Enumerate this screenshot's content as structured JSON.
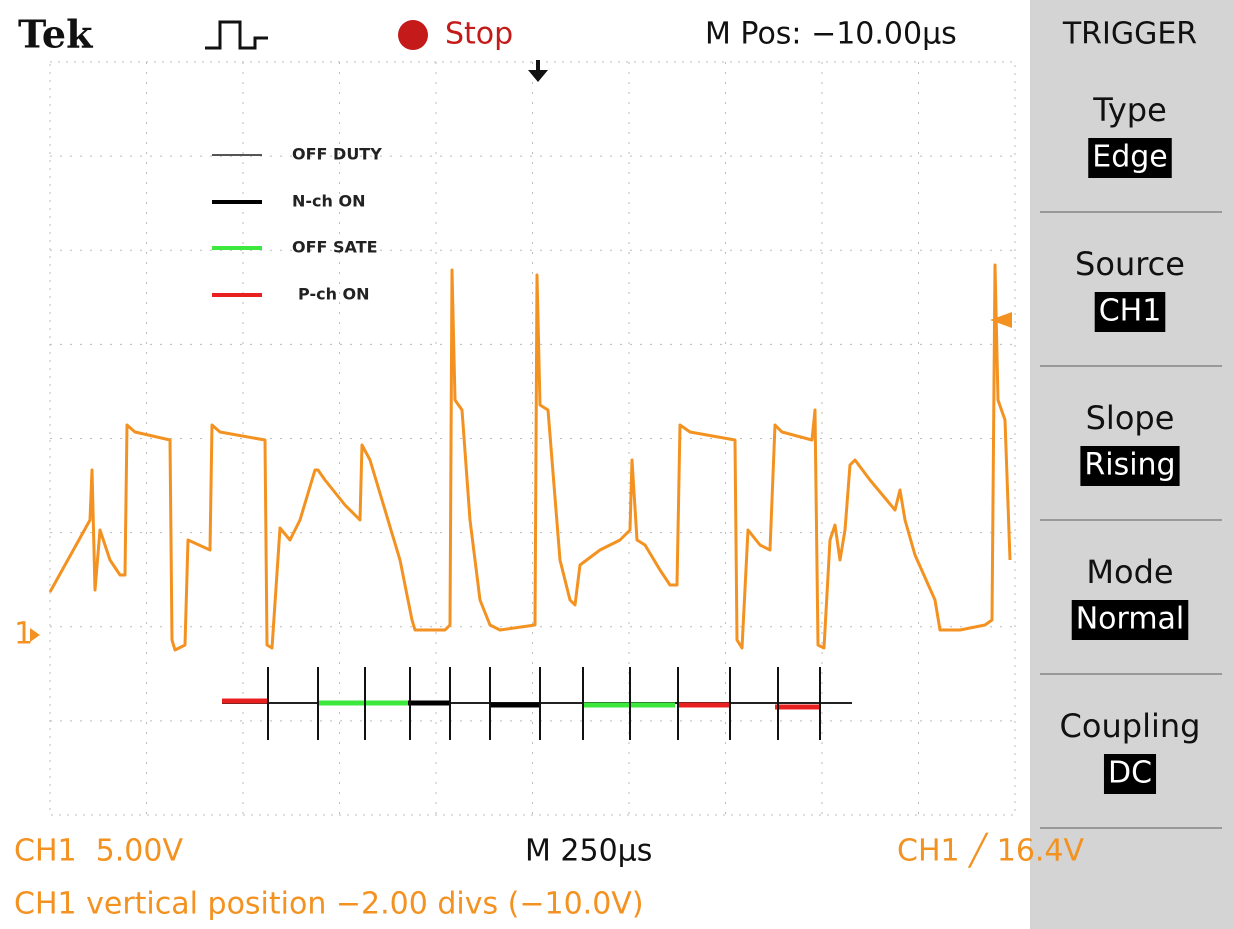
{
  "header": {
    "brand": "Tek",
    "status": "Stop",
    "position": "M Pos: −10.00µs",
    "menu_title": "TRIGGER"
  },
  "menu": [
    {
      "label": "Type",
      "value": "Edge"
    },
    {
      "label": "Source",
      "value": "CH1"
    },
    {
      "label": "Slope",
      "value": "Rising"
    },
    {
      "label": "Mode",
      "value": "Normal"
    },
    {
      "label": "Coupling",
      "value": "DC"
    }
  ],
  "legend": [
    "OFF DUTY",
    "N-ch ON",
    "OFF SATE",
    "P-ch ON"
  ],
  "channel_marker": "1",
  "footer": {
    "ch_scale": "CH1  5.00V",
    "timebase": "M 250µs",
    "trigger": "CH1 ╱ 16.4V",
    "message": "CH1 vertical position −2.00 divs (−10.0V)"
  }
}
